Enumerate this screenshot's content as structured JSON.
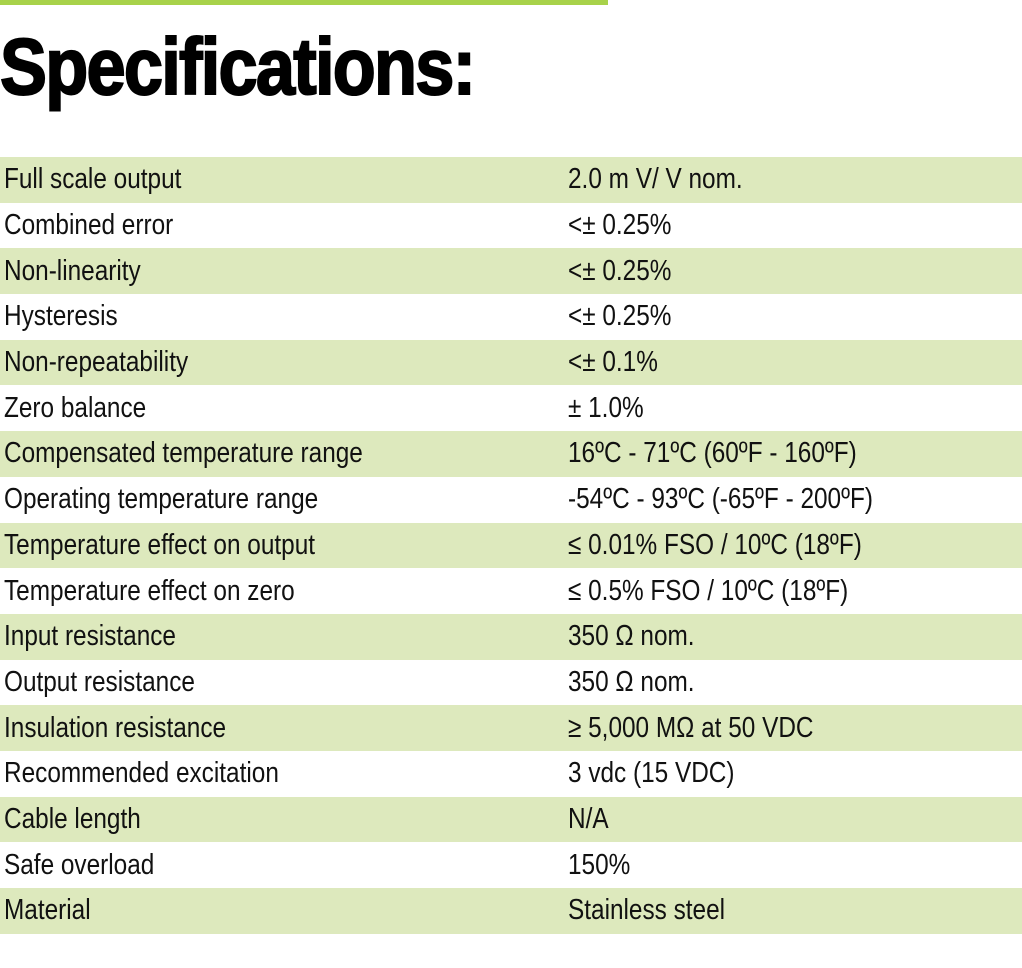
{
  "header": {
    "title": "Specifications:"
  },
  "table": {
    "rows": [
      [
        "Full scale output",
        "2.0 m  V/ V nom."
      ],
      [
        "Combined error",
        "<± 0.25%"
      ],
      [
        "Non-linearity",
        "<± 0.25%"
      ],
      [
        "Hysteresis",
        "<± 0.25%"
      ],
      [
        "Non-repeatability",
        "<± 0.1%"
      ],
      [
        "Zero balance",
        "± 1.0%"
      ],
      [
        "Compensated temperature range",
        "16ºC - 71ºC (60ºF - 160ºF)"
      ],
      [
        "Operating temperature range",
        "-54ºC - 93ºC (-65ºF - 200ºF)"
      ],
      [
        "Temperature effect on output",
        "≤ 0.01% FSO / 10ºC (18ºF)"
      ],
      [
        "Temperature effect on zero",
        "≤ 0.5% FSO / 10ºC (18ºF)"
      ],
      [
        "Input resistance",
        "350 Ω nom."
      ],
      [
        "Output resistance",
        "350 Ω nom."
      ],
      [
        "Insulation resistance",
        "≥ 5,000 MΩ at 50 VDC"
      ],
      [
        "Recommended excitation",
        "3 vdc (15 VDC)"
      ],
      [
        "Cable length",
        "N/A"
      ],
      [
        "Safe overload",
        "150%"
      ],
      [
        "Material",
        "Stainless steel"
      ]
    ]
  }
}
